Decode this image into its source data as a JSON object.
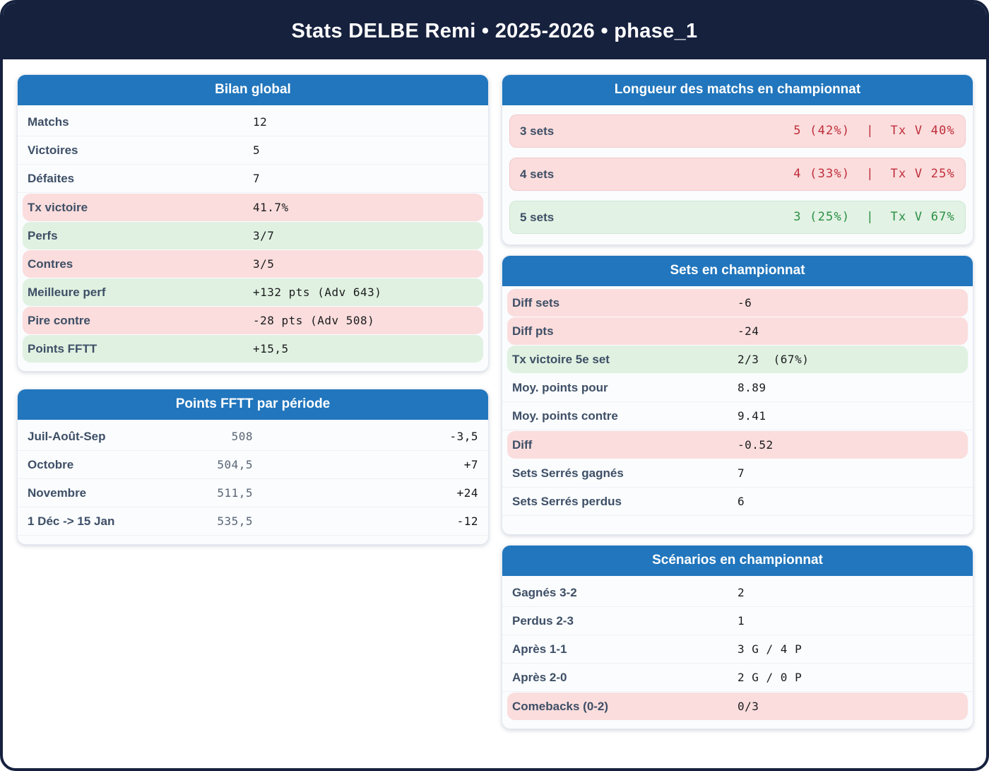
{
  "page_title": "Stats DELBE Remi • 2025-2026 • phase_1",
  "colors": {
    "navy": "#16213e",
    "card_header_blue": "#2176bd",
    "pink_highlight": "#fbdddd",
    "green_highlight": "#e0f1e1",
    "red_text": "#bf2e3a",
    "green_text": "#2a8f44"
  },
  "cards": {
    "bilan": {
      "title": "Bilan global",
      "rows": [
        {
          "label": "Matchs",
          "value": "12",
          "tone": "plain"
        },
        {
          "label": "Victoires",
          "value": "5",
          "tone": "plain"
        },
        {
          "label": "Défaites",
          "value": "7",
          "tone": "plain"
        },
        {
          "label": "Tx victoire",
          "value": "41.7%",
          "tone": "red"
        },
        {
          "label": "Perfs",
          "value": "3/7",
          "tone": "green"
        },
        {
          "label": "Contres",
          "value": "3/5",
          "tone": "red"
        },
        {
          "label": "Meilleure perf",
          "value": "+132 pts (Adv 643)",
          "tone": "green"
        },
        {
          "label": "Pire contre",
          "value": "-28 pts (Adv 508)",
          "tone": "red"
        },
        {
          "label": "Points FFTT",
          "value": "+15,5",
          "tone": "green"
        }
      ]
    },
    "points_fftt": {
      "title": "Points FFTT par période",
      "rows": [
        {
          "label": "Juil-Août-Sep",
          "points": "508",
          "delta": "-3,5"
        },
        {
          "label": "Octobre",
          "points": "504,5",
          "delta": "+7"
        },
        {
          "label": "Novembre",
          "points": "511,5",
          "delta": "+24"
        },
        {
          "label": "1 Déc -> 15 Jan",
          "points": "535,5",
          "delta": "-12"
        }
      ]
    },
    "longueur": {
      "title": "Longueur des matchs en championnat",
      "rows": [
        {
          "label": "3 sets",
          "value": "5 (42%)  |  Tx V 40%",
          "tone": "red"
        },
        {
          "label": "4 sets",
          "value": "4 (33%)  |  Tx V 25%",
          "tone": "red"
        },
        {
          "label": "5 sets",
          "value": "3 (25%)  |  Tx V 67%",
          "tone": "green"
        }
      ]
    },
    "sets": {
      "title": "Sets en championnat",
      "rows": [
        {
          "label": "Diff sets",
          "value": "-6",
          "tone": "red"
        },
        {
          "label": "Diff pts",
          "value": "-24",
          "tone": "red"
        },
        {
          "label": "Tx victoire 5e set",
          "value": "2/3  (67%)",
          "tone": "green"
        },
        {
          "label": "Moy. points pour",
          "value": "8.89",
          "tone": "plain"
        },
        {
          "label": "Moy. points contre",
          "value": "9.41",
          "tone": "plain"
        },
        {
          "label": "Diff",
          "value": "-0.52",
          "tone": "red"
        },
        {
          "label": "Sets Serrés gagnés",
          "value": "7",
          "tone": "plain"
        },
        {
          "label": "Sets Serrés perdus",
          "value": "6",
          "tone": "plain"
        }
      ]
    },
    "scenarios": {
      "title": "Scénarios en championnat",
      "rows": [
        {
          "label": "Gagnés 3-2",
          "value": "2",
          "tone": "plain"
        },
        {
          "label": "Perdus 2-3",
          "value": "1",
          "tone": "plain"
        },
        {
          "label": "Après 1-1",
          "value": "3 G / 4 P",
          "tone": "plain"
        },
        {
          "label": "Après 2-0",
          "value": "2 G / 0 P",
          "tone": "plain"
        },
        {
          "label": "Comebacks (0-2)",
          "value": "0/3",
          "tone": "red"
        }
      ]
    }
  }
}
